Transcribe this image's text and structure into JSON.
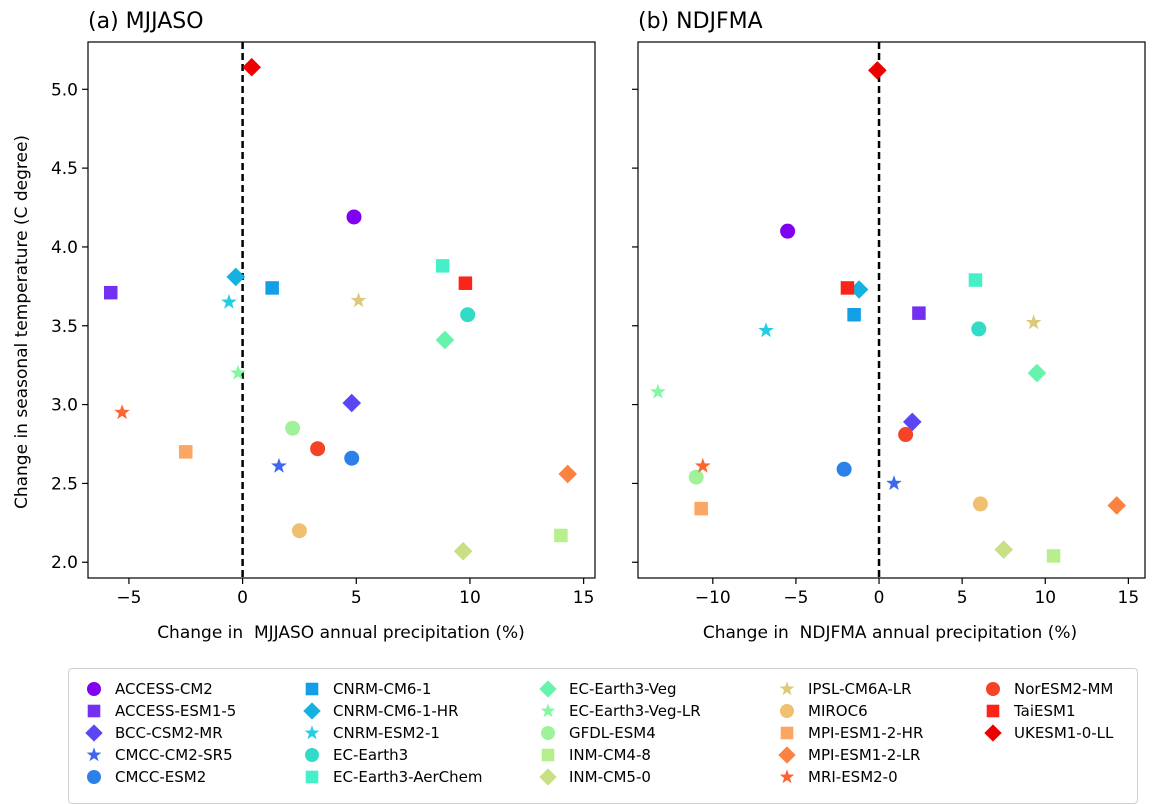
{
  "figure": {
    "ylabel": "Change in seasonal temperature (C degree)"
  },
  "chart_data": [
    {
      "type": "scatter",
      "title": "(a) MJJASO",
      "xlabel": "Change in  MJJASO annual precipitation (%)",
      "ylabel": "Change in seasonal temperature (C degree)",
      "xlim": [
        -6.8,
        15.5
      ],
      "ylim": [
        1.9,
        5.3
      ],
      "xticks": [
        -5,
        0,
        5,
        10,
        15
      ],
      "yticks": [
        2.0,
        2.5,
        3.0,
        3.5,
        4.0,
        4.5,
        5.0
      ],
      "xtick_labels": [
        "−5",
        "0",
        "5",
        "10",
        "15"
      ],
      "ytick_labels": [
        "2.0",
        "2.5",
        "3.0",
        "3.5",
        "4.0",
        "4.5",
        "5.0"
      ],
      "reference_line": {
        "x": 0,
        "style": "dashed"
      },
      "points": [
        {
          "model": "ACCESS-CM2",
          "x": 4.9,
          "y": 4.19
        },
        {
          "model": "ACCESS-ESM1-5",
          "x": -5.8,
          "y": 3.71
        },
        {
          "model": "BCC-CSM2-MR",
          "x": 4.8,
          "y": 3.01
        },
        {
          "model": "CMCC-CM2-SR5",
          "x": 1.6,
          "y": 2.61
        },
        {
          "model": "CMCC-ESM2",
          "x": 4.8,
          "y": 2.66
        },
        {
          "model": "CNRM-CM6-1",
          "x": 1.3,
          "y": 3.74
        },
        {
          "model": "CNRM-CM6-1-HR",
          "x": -0.3,
          "y": 3.81
        },
        {
          "model": "CNRM-ESM2-1",
          "x": -0.6,
          "y": 3.65
        },
        {
          "model": "EC-Earth3",
          "x": 9.9,
          "y": 3.57
        },
        {
          "model": "EC-Earth3-AerChem",
          "x": 8.8,
          "y": 3.88
        },
        {
          "model": "EC-Earth3-Veg",
          "x": 8.9,
          "y": 3.41
        },
        {
          "model": "EC-Earth3-Veg-LR",
          "x": -0.2,
          "y": 3.2
        },
        {
          "model": "GFDL-ESM4",
          "x": 2.2,
          "y": 2.85
        },
        {
          "model": "INM-CM4-8",
          "x": 14.0,
          "y": 2.17
        },
        {
          "model": "INM-CM5-0",
          "x": 9.7,
          "y": 2.07
        },
        {
          "model": "IPSL-CM6A-LR",
          "x": 5.1,
          "y": 3.66
        },
        {
          "model": "MIROC6",
          "x": 2.5,
          "y": 2.2
        },
        {
          "model": "MPI-ESM1-2-HR",
          "x": -2.5,
          "y": 2.7
        },
        {
          "model": "MPI-ESM1-2-LR",
          "x": 14.3,
          "y": 2.56
        },
        {
          "model": "MRI-ESM2-0",
          "x": -5.3,
          "y": 2.95
        },
        {
          "model": "NorESM2-MM",
          "x": 3.3,
          "y": 2.72
        },
        {
          "model": "TaiESM1",
          "x": 9.8,
          "y": 3.77
        },
        {
          "model": "UKESM1-0-LL",
          "x": 0.4,
          "y": 5.14
        }
      ]
    },
    {
      "type": "scatter",
      "title": "(b) NDJFMA",
      "xlabel": "Change in  NDJFMA annual precipitation (%)",
      "ylabel": "",
      "xlim": [
        -14.5,
        16.0
      ],
      "ylim": [
        1.9,
        5.3
      ],
      "xticks": [
        -10,
        -5,
        0,
        5,
        10,
        15
      ],
      "yticks": [
        2.0,
        2.5,
        3.0,
        3.5,
        4.0,
        4.5,
        5.0
      ],
      "xtick_labels": [
        "−10",
        "−5",
        "0",
        "5",
        "10",
        "15"
      ],
      "ytick_labels": [],
      "reference_line": {
        "x": 0,
        "style": "dashed"
      },
      "points": [
        {
          "model": "ACCESS-CM2",
          "x": -5.5,
          "y": 4.1
        },
        {
          "model": "ACCESS-ESM1-5",
          "x": 2.4,
          "y": 3.58
        },
        {
          "model": "BCC-CSM2-MR",
          "x": 2.0,
          "y": 2.89
        },
        {
          "model": "CMCC-CM2-SR5",
          "x": 0.9,
          "y": 2.5
        },
        {
          "model": "CMCC-ESM2",
          "x": -2.1,
          "y": 2.59
        },
        {
          "model": "CNRM-CM6-1",
          "x": -1.5,
          "y": 3.57
        },
        {
          "model": "CNRM-CM6-1-HR",
          "x": -1.2,
          "y": 3.73
        },
        {
          "model": "CNRM-ESM2-1",
          "x": -6.8,
          "y": 3.47
        },
        {
          "model": "EC-Earth3",
          "x": 6.0,
          "y": 3.48
        },
        {
          "model": "EC-Earth3-AerChem",
          "x": 5.8,
          "y": 3.79
        },
        {
          "model": "EC-Earth3-Veg",
          "x": 9.5,
          "y": 3.2
        },
        {
          "model": "EC-Earth3-Veg-LR",
          "x": -13.3,
          "y": 3.08
        },
        {
          "model": "GFDL-ESM4",
          "x": -11.0,
          "y": 2.54
        },
        {
          "model": "INM-CM4-8",
          "x": 10.5,
          "y": 2.04
        },
        {
          "model": "INM-CM5-0",
          "x": 7.5,
          "y": 2.08
        },
        {
          "model": "IPSL-CM6A-LR",
          "x": 9.3,
          "y": 3.52
        },
        {
          "model": "MIROC6",
          "x": 6.1,
          "y": 2.37
        },
        {
          "model": "MPI-ESM1-2-HR",
          "x": -10.7,
          "y": 2.34
        },
        {
          "model": "MPI-ESM1-2-LR",
          "x": 14.3,
          "y": 2.36
        },
        {
          "model": "MRI-ESM2-0",
          "x": -10.6,
          "y": 2.61
        },
        {
          "model": "NorESM2-MM",
          "x": 1.6,
          "y": 2.81
        },
        {
          "model": "TaiESM1",
          "x": -1.9,
          "y": 3.74
        },
        {
          "model": "UKESM1-0-LL",
          "x": -0.1,
          "y": 5.12
        }
      ]
    }
  ],
  "legend": {
    "columns": 5,
    "items": [
      {
        "label": "ACCESS-CM2",
        "marker": "circle",
        "color": "#8000f0"
      },
      {
        "label": "ACCESS-ESM1-5",
        "marker": "square",
        "color": "#7330f3"
      },
      {
        "label": "BCC-CSM2-MR",
        "marker": "diamond",
        "color": "#5b46f5"
      },
      {
        "label": "CMCC-CM2-SR5",
        "marker": "star",
        "color": "#3e67f0"
      },
      {
        "label": "CMCC-ESM2",
        "marker": "circle",
        "color": "#2b81e8"
      },
      {
        "label": "CNRM-CM6-1",
        "marker": "square",
        "color": "#139ee6"
      },
      {
        "label": "CNRM-CM6-1-HR",
        "marker": "diamond",
        "color": "#14b2de"
      },
      {
        "label": "CNRM-ESM2-1",
        "marker": "star",
        "color": "#24cde3"
      },
      {
        "label": "EC-Earth3",
        "marker": "circle",
        "color": "#33dbc7"
      },
      {
        "label": "EC-Earth3-AerChem",
        "marker": "square",
        "color": "#45f0c8"
      },
      {
        "label": "EC-Earth3-Veg",
        "marker": "diamond",
        "color": "#66f3ad"
      },
      {
        "label": "EC-Earth3-Veg-LR",
        "marker": "star",
        "color": "#82f8a3"
      },
      {
        "label": "GFDL-ESM4",
        "marker": "circle",
        "color": "#9ff29a"
      },
      {
        "label": "INM-CM4-8",
        "marker": "square",
        "color": "#b7ef8c"
      },
      {
        "label": "INM-CM5-0",
        "marker": "diamond",
        "color": "#c8df84"
      },
      {
        "label": "IPSL-CM6A-LR",
        "marker": "star",
        "color": "#dcc97a"
      },
      {
        "label": "MIROC6",
        "marker": "circle",
        "color": "#f0c070"
      },
      {
        "label": "MPI-ESM1-2-HR",
        "marker": "square",
        "color": "#fba662"
      },
      {
        "label": "MPI-ESM1-2-LR",
        "marker": "diamond",
        "color": "#fb8240"
      },
      {
        "label": "MRI-ESM2-0",
        "marker": "star",
        "color": "#fd6430"
      },
      {
        "label": "NorESM2-MM",
        "marker": "circle",
        "color": "#f44325"
      },
      {
        "label": "TaiESM1",
        "marker": "square",
        "color": "#fb2418"
      },
      {
        "label": "UKESM1-0-LL",
        "marker": "diamond",
        "color": "#ee0000"
      }
    ]
  }
}
